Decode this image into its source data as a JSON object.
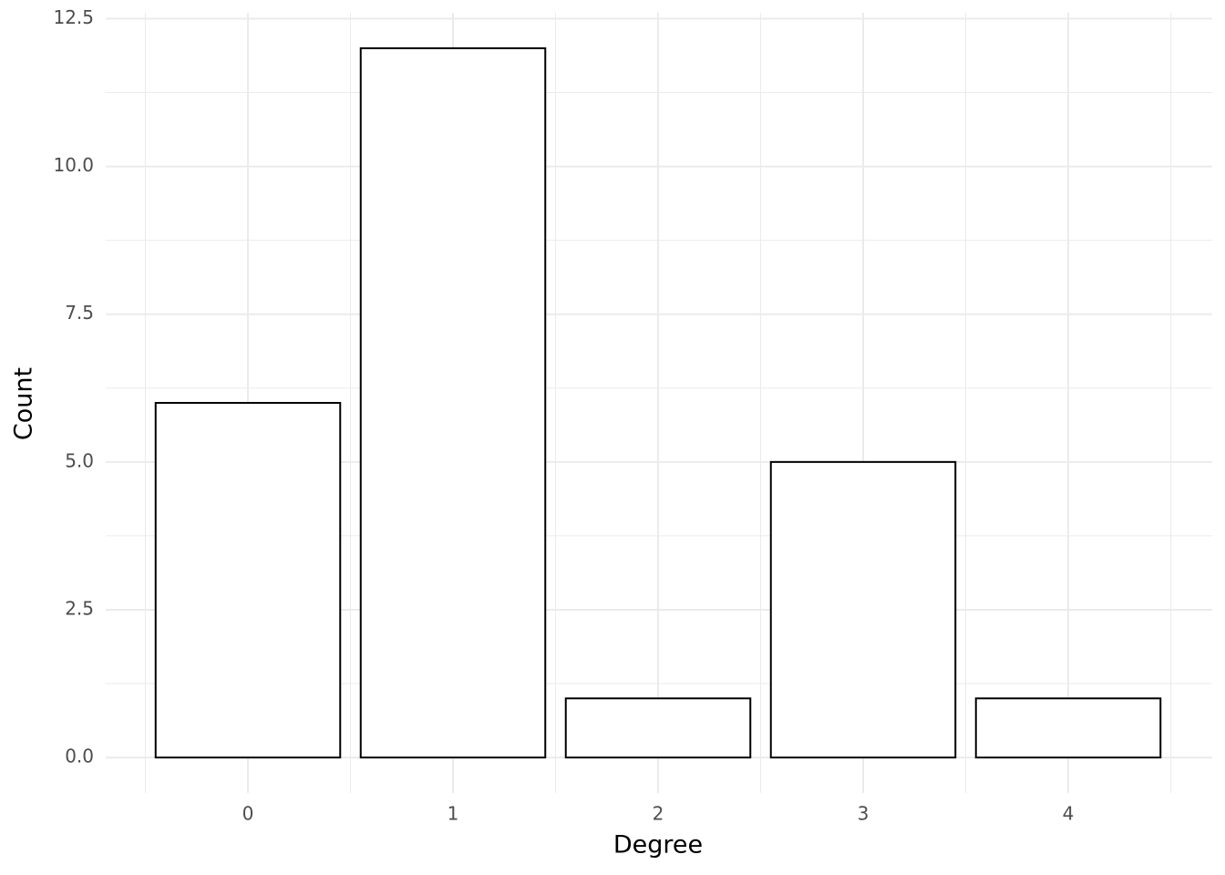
{
  "chart_data": {
    "type": "bar",
    "x_label": "Degree",
    "y_label": "Count",
    "categories": [
      "0",
      "1",
      "2",
      "3",
      "4"
    ],
    "values": [
      6,
      12,
      1,
      5,
      1
    ],
    "color": "#ffffff",
    "edge_color": "#000000",
    "ylim": [
      -0.6,
      12.6
    ],
    "yticks": [
      {
        "value": 0,
        "label": "0.0"
      },
      2.5,
      {
        "value": 5,
        "label": "5.0"
      },
      7.5,
      {
        "value": 10,
        "label": "10.0"
      },
      12.5
    ],
    "grid": true
  }
}
